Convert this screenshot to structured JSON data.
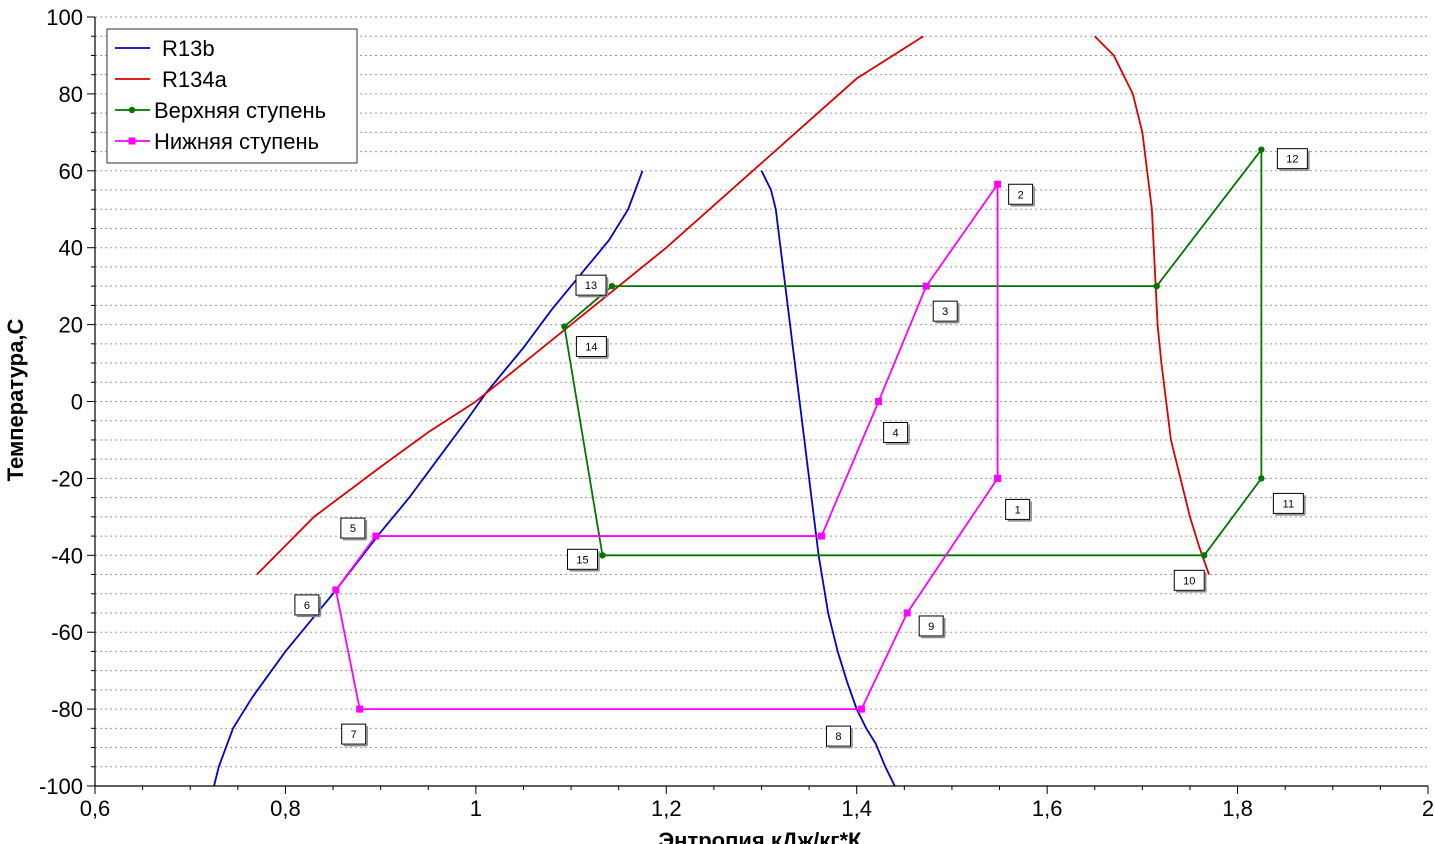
{
  "chart_data": {
    "type": "line",
    "xlabel": "Энтропия,кДж/кг*К",
    "ylabel": "Температура,С",
    "xlim": [
      0.6,
      2
    ],
    "ylim": [
      -100,
      100
    ],
    "x_ticks": [
      0.6,
      0.8,
      1,
      1.2,
      1.4,
      1.6,
      1.8,
      2
    ],
    "x_tick_labels": [
      "0,6",
      "0,8",
      "1",
      "1,2",
      "1,4",
      "1,6",
      "1,8",
      "2"
    ],
    "y_ticks": [
      -100,
      -80,
      -60,
      -40,
      -20,
      0,
      20,
      40,
      60,
      80,
      100
    ],
    "y_tick_labels": [
      "-100",
      "-80",
      "-60",
      "-40",
      "-20",
      "0",
      "20",
      "40",
      "60",
      "80",
      "100"
    ],
    "grid": "horizontal dotted",
    "legend_position": "top-left",
    "series": [
      {
        "name": "R13b",
        "color": "#0000cc",
        "marker": "none",
        "segments": [
          [
            [
              0.725,
              -100
            ],
            [
              0.73,
              -95
            ],
            [
              0.745,
              -85
            ],
            [
              0.765,
              -77
            ],
            [
              0.8,
              -65
            ],
            [
              0.85,
              -50
            ],
            [
              0.9,
              -34
            ],
            [
              0.93,
              -25
            ],
            [
              0.96,
              -15
            ],
            [
              0.99,
              -5
            ],
            [
              1.01,
              2
            ],
            [
              1.05,
              14
            ],
            [
              1.08,
              24
            ],
            [
              1.12,
              36
            ],
            [
              1.14,
              42
            ],
            [
              1.16,
              50
            ],
            [
              1.175,
              60
            ]
          ],
          [
            [
              1.3,
              60
            ],
            [
              1.31,
              55
            ],
            [
              1.315,
              50
            ],
            [
              1.32,
              40
            ],
            [
              1.325,
              30
            ],
            [
              1.33,
              20
            ],
            [
              1.335,
              10
            ],
            [
              1.34,
              0
            ],
            [
              1.345,
              -10
            ],
            [
              1.35,
              -20
            ],
            [
              1.355,
              -30
            ],
            [
              1.36,
              -40
            ],
            [
              1.37,
              -55
            ],
            [
              1.38,
              -65
            ],
            [
              1.39,
              -73
            ],
            [
              1.4,
              -80
            ],
            [
              1.41,
              -85
            ],
            [
              1.42,
              -89
            ],
            [
              1.43,
              -95
            ],
            [
              1.44,
              -100
            ]
          ]
        ]
      },
      {
        "name": "R134a",
        "color": "#dd0000",
        "marker": "none",
        "segments": [
          [
            [
              0.77,
              -45
            ],
            [
              0.83,
              -30
            ],
            [
              0.9,
              -17
            ],
            [
              0.95,
              -8
            ],
            [
              1.0,
              0
            ],
            [
              1.05,
              10
            ],
            [
              1.1,
              20
            ],
            [
              1.2,
              40
            ],
            [
              1.3,
              62
            ],
            [
              1.4,
              84
            ],
            [
              1.47,
              95
            ]
          ],
          [
            [
              1.65,
              95
            ],
            [
              1.67,
              90
            ],
            [
              1.68,
              85
            ],
            [
              1.69,
              80
            ],
            [
              1.7,
              70
            ],
            [
              1.705,
              60
            ],
            [
              1.71,
              50
            ],
            [
              1.712,
              40
            ],
            [
              1.714,
              30
            ],
            [
              1.716,
              20
            ],
            [
              1.72,
              10
            ],
            [
              1.725,
              0
            ],
            [
              1.73,
              -10
            ],
            [
              1.74,
              -20
            ],
            [
              1.75,
              -30
            ],
            [
              1.76,
              -38
            ],
            [
              1.77,
              -45
            ]
          ]
        ]
      },
      {
        "name": "Верхняя ступень",
        "color": "#007700",
        "marker": "circle",
        "points": [
          {
            "x": 1.715,
            "y": 30
          },
          {
            "x": 1.825,
            "y": 65.5
          },
          {
            "x": 1.825,
            "y": -20
          },
          {
            "x": 1.765,
            "y": -40
          },
          {
            "x": 1.133,
            "y": -40
          },
          {
            "x": 1.093,
            "y": 19.5
          },
          {
            "x": 1.143,
            "y": 30
          },
          {
            "x": 1.715,
            "y": 30
          }
        ]
      },
      {
        "name": "Нижняя ступень",
        "color": "#ff00ff",
        "marker": "square",
        "points": [
          {
            "x": 1.548,
            "y": -20
          },
          {
            "x": 1.548,
            "y": 56.5
          },
          {
            "x": 1.473,
            "y": 30
          },
          {
            "x": 1.423,
            "y": 0
          },
          {
            "x": 1.363,
            "y": -35
          },
          {
            "x": 0.895,
            "y": -35
          },
          {
            "x": 0.853,
            "y": -49
          },
          {
            "x": 0.878,
            "y": -80
          },
          {
            "x": 1.405,
            "y": -80
          },
          {
            "x": 1.453,
            "y": -55
          },
          {
            "x": 1.548,
            "y": -20
          }
        ]
      }
    ],
    "annotations": [
      {
        "text": "1",
        "x": 1.548,
        "y": -20
      },
      {
        "text": "2",
        "x": 1.548,
        "y": 56.5
      },
      {
        "text": "3",
        "x": 1.473,
        "y": 30
      },
      {
        "text": "4",
        "x": 1.423,
        "y": 0
      },
      {
        "text": "5",
        "x": 0.895,
        "y": -35
      },
      {
        "text": "6",
        "x": 0.853,
        "y": -49
      },
      {
        "text": "7",
        "x": 0.878,
        "y": -80
      },
      {
        "text": "8",
        "x": 1.405,
        "y": -80
      },
      {
        "text": "9",
        "x": 1.453,
        "y": -55
      },
      {
        "text": "10",
        "x": 1.765,
        "y": -40
      },
      {
        "text": "11",
        "x": 1.825,
        "y": -20
      },
      {
        "text": "12",
        "x": 1.825,
        "y": 65.5
      },
      {
        "text": "13",
        "x": 1.143,
        "y": 30
      },
      {
        "text": "14",
        "x": 1.093,
        "y": 19.5
      },
      {
        "text": "15",
        "x": 1.133,
        "y": -40
      }
    ]
  }
}
